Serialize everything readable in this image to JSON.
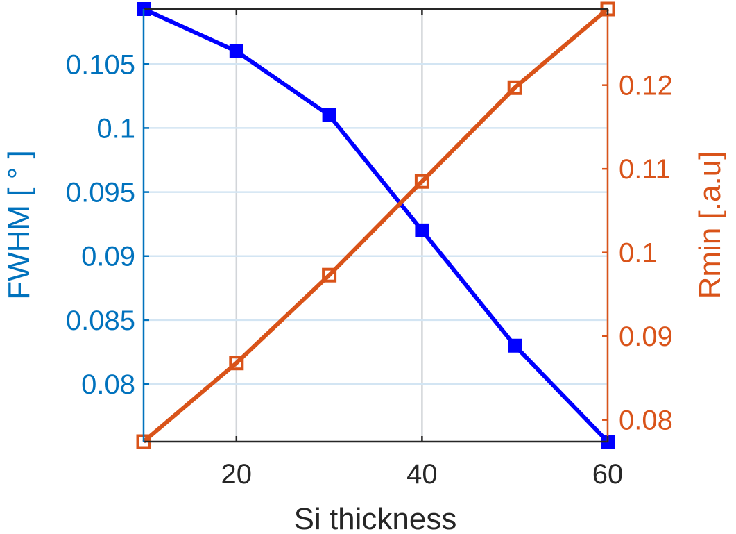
{
  "chart_data": {
    "type": "line",
    "title": "",
    "xlabel": "Si thickness",
    "xlim": [
      10,
      60
    ],
    "x": [
      10,
      20,
      30,
      40,
      50,
      60
    ],
    "xticks": [
      20,
      40,
      60
    ],
    "xtick_labels": [
      "20",
      "40",
      "60"
    ],
    "grid": true,
    "axes": {
      "left": {
        "label": "FWHM  [ ° ]",
        "ylim": [
          0.0755,
          0.1093
        ],
        "ticks": [
          0.08,
          0.085,
          0.09,
          0.095,
          0.1,
          0.105
        ],
        "tick_labels": [
          "0.08",
          "0.085",
          "0.09",
          "0.095",
          "0.1",
          "0.105"
        ],
        "color": "#0072BD"
      },
      "right": {
        "label": "Rmin [.a.u]",
        "ylim": [
          0.0774,
          0.1291
        ],
        "ticks": [
          0.08,
          0.09,
          0.1,
          0.11,
          0.12
        ],
        "tick_labels": [
          "0.08",
          "0.09",
          "0.1",
          "0.11",
          "0.12"
        ],
        "color": "#D95319"
      }
    },
    "series": [
      {
        "axis": "left",
        "color": "#0000FF",
        "marker": "square",
        "values": [
          0.1093,
          0.106,
          0.101,
          0.092,
          0.083,
          0.0755
        ]
      },
      {
        "axis": "right",
        "color": "#D95319",
        "marker": "square",
        "values": [
          0.0774,
          0.0868,
          0.0973,
          0.1085,
          0.1197,
          0.1291
        ]
      }
    ]
  }
}
